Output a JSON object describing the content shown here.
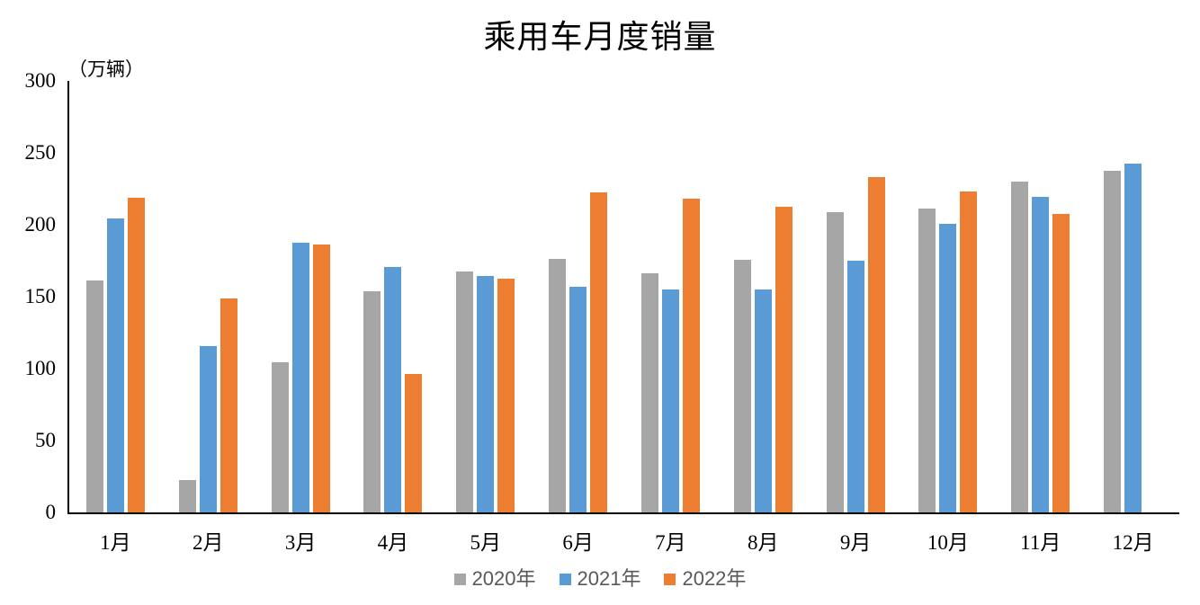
{
  "chart_data": {
    "type": "bar",
    "title": "乘用车月度销量",
    "unit_label": "（万辆）",
    "unit": "万辆",
    "categories": [
      "1月",
      "2月",
      "3月",
      "4月",
      "5月",
      "6月",
      "7月",
      "8月",
      "9月",
      "10月",
      "11月",
      "12月"
    ],
    "series": [
      {
        "name": "2020年",
        "color": "#A6A6A6",
        "values": [
          161.4,
          22.4,
          104.3,
          153.6,
          167.4,
          176.4,
          166.5,
          175.5,
          208.8,
          211.0,
          229.7,
          237.5
        ]
      },
      {
        "name": "2021年",
        "color": "#5B9BD5",
        "values": [
          204.5,
          115.6,
          187.4,
          170.8,
          164.6,
          156.9,
          155.1,
          155.2,
          175.1,
          200.7,
          219.2,
          242.2
        ]
      },
      {
        "name": "2022年",
        "color": "#ED7D31",
        "values": [
          218.6,
          148.7,
          186.4,
          96.5,
          162.3,
          222.2,
          217.9,
          212.5,
          233.2,
          223.1,
          207.5,
          null
        ]
      }
    ],
    "ylim": [
      0,
      300
    ],
    "yticks": [
      0,
      50,
      100,
      150,
      200,
      250,
      300
    ],
    "grid": false,
    "legend_position": "bottom",
    "axis_color": "#000000",
    "legend_text_color": "#595959"
  }
}
